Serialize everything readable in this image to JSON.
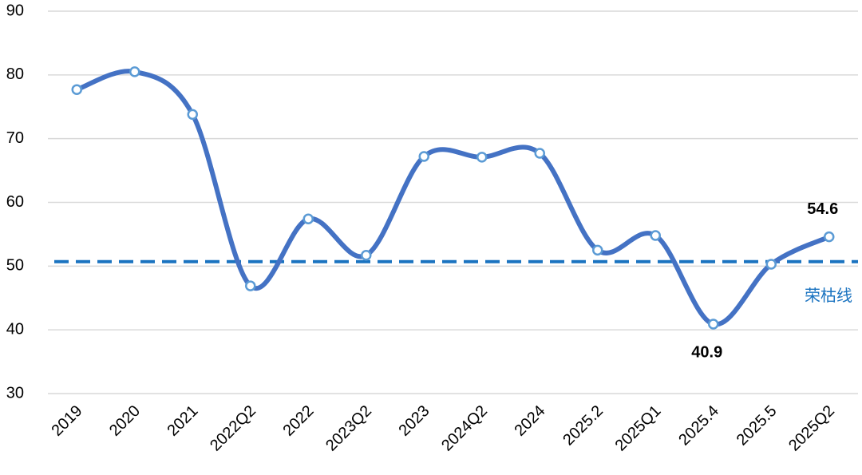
{
  "chart_data": {
    "type": "line",
    "categories": [
      "2019",
      "2020",
      "2021",
      "2022Q2",
      "2022",
      "2023Q2",
      "2023",
      "2024Q2",
      "2024",
      "2025.2",
      "2025Q1",
      "2025.4",
      "2025.5",
      "2025Q2"
    ],
    "series": [
      {
        "color": "#4472c4",
        "marker_color": "#5b9bd5",
        "values": [
          77.7,
          80.5,
          73.8,
          46.9,
          57.4,
          51.7,
          67.2,
          67.1,
          67.7,
          52.5,
          54.8,
          40.9,
          50.3,
          54.6
        ],
        "value_labels": [
          null,
          null,
          null,
          null,
          null,
          null,
          null,
          null,
          null,
          null,
          null,
          "40.9",
          null,
          "54.6"
        ]
      }
    ],
    "ylim": [
      30,
      90
    ],
    "yticks": [
      30,
      40,
      50,
      60,
      70,
      80,
      90
    ],
    "grid": true,
    "smooth": true,
    "reference_line": {
      "value": 50.7,
      "label": "荣枯线",
      "color": "#1a73c0"
    }
  }
}
